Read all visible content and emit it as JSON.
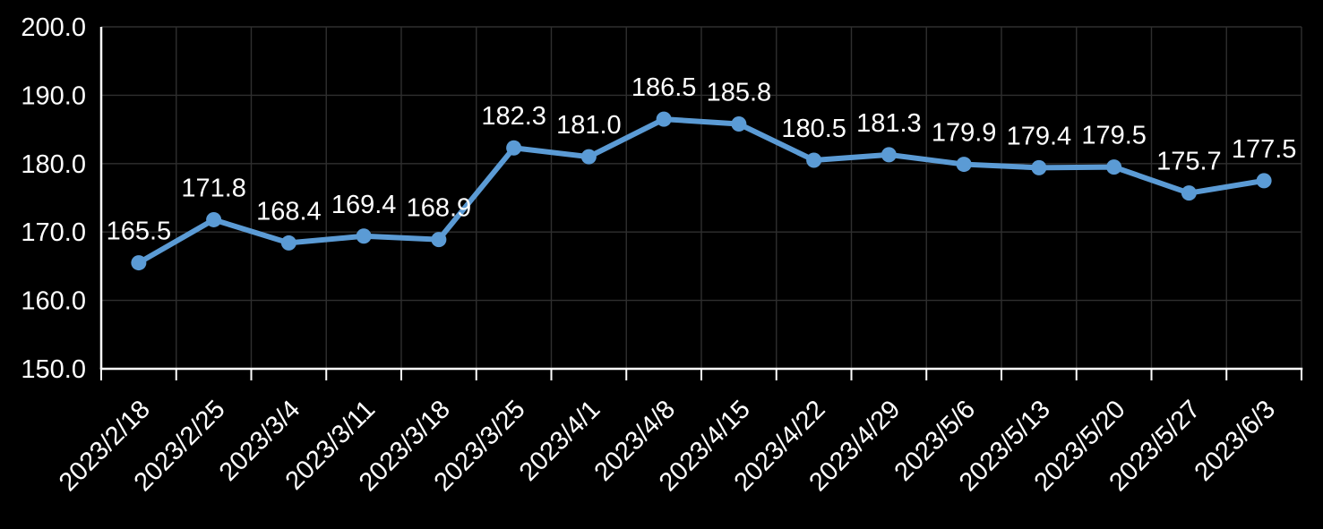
{
  "chart_data": {
    "type": "line",
    "title": "",
    "xlabel": "",
    "ylabel": "",
    "categories": [
      "2023/2/18",
      "2023/2/25",
      "2023/3/4",
      "2023/3/11",
      "2023/3/18",
      "2023/3/25",
      "2023/4/1",
      "2023/4/8",
      "2023/4/15",
      "2023/4/22",
      "2023/4/29",
      "2023/5/6",
      "2023/5/13",
      "2023/5/20",
      "2023/5/27",
      "2023/6/3"
    ],
    "values": [
      165.5,
      171.8,
      168.4,
      169.4,
      168.9,
      182.3,
      181.0,
      186.5,
      185.8,
      180.5,
      181.3,
      179.9,
      179.4,
      179.5,
      175.7,
      177.5
    ],
    "data_labels": [
      "165.5",
      "171.8",
      "168.4",
      "169.4",
      "168.9",
      "182.3",
      "181.0",
      "186.5",
      "185.8",
      "180.5",
      "181.3",
      "179.9",
      "179.4",
      "179.5",
      "175.7",
      "177.5"
    ],
    "ylim": [
      150,
      200
    ],
    "y_tick_step": 10,
    "y_tick_labels": [
      "150.0",
      "160.0",
      "170.0",
      "180.0",
      "190.0",
      "200.0"
    ],
    "x_tick_rotation_deg": -45,
    "grid": "both",
    "legend": "none",
    "colors": {
      "background": "#000000",
      "series": "#5B9BD5",
      "grid": "#2F2F2F",
      "axis": "#FFFFFF",
      "text": "#FFFFFF"
    }
  }
}
